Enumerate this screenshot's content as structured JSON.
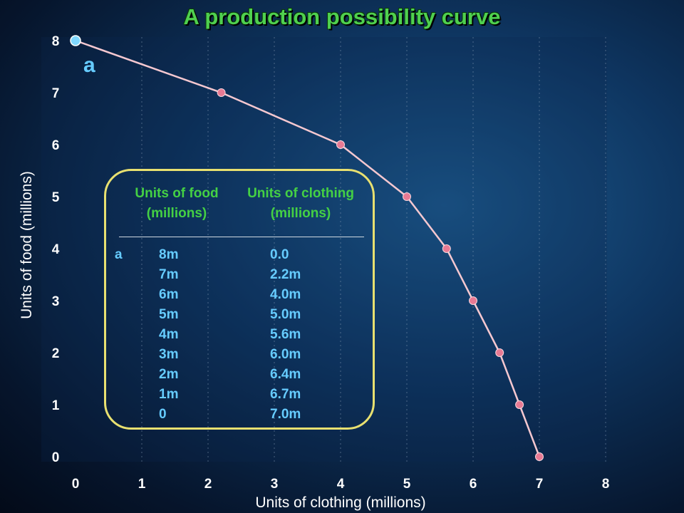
{
  "title": "A production possibility curve",
  "chart_data": {
    "type": "line",
    "title": "A production possibility curve",
    "xlabel": "Units of clothing (millions)",
    "ylabel": "Units of food (millions)",
    "xlim": [
      0,
      8
    ],
    "ylim": [
      0,
      8
    ],
    "x_ticks": [
      "0",
      "1",
      "2",
      "3",
      "4",
      "5",
      "6",
      "7",
      "8"
    ],
    "y_ticks": [
      "0",
      "1",
      "2",
      "3",
      "4",
      "5",
      "6",
      "7",
      "8"
    ],
    "grid": "vertical dashed lines",
    "series": [
      {
        "x": [
          0.0,
          2.2,
          4.0,
          5.0,
          5.6,
          6.0,
          6.4,
          6.7,
          7.0
        ],
        "y": [
          8,
          7,
          6,
          5,
          4,
          3,
          2,
          1,
          0
        ]
      }
    ],
    "point_label": {
      "text": "a",
      "x": 0.0,
      "y": 8
    },
    "colors": {
      "line": "#f5c8d0",
      "marker": "#e87a94",
      "highlight_marker": "#7fd8ff"
    }
  },
  "table": {
    "headers": [
      "Units of food\n(millions)",
      "Units of clothing\n(millions)"
    ],
    "row_label": "a",
    "food": [
      "8m",
      "7m",
      "6m",
      "5m",
      "4m",
      "3m",
      "2m",
      "1m",
      "0"
    ],
    "clothing": [
      "0.0",
      "2.2m",
      "4.0m",
      "5.0m",
      "5.6m",
      "6.0m",
      "6.4m",
      "6.7m",
      "7.0m"
    ]
  }
}
